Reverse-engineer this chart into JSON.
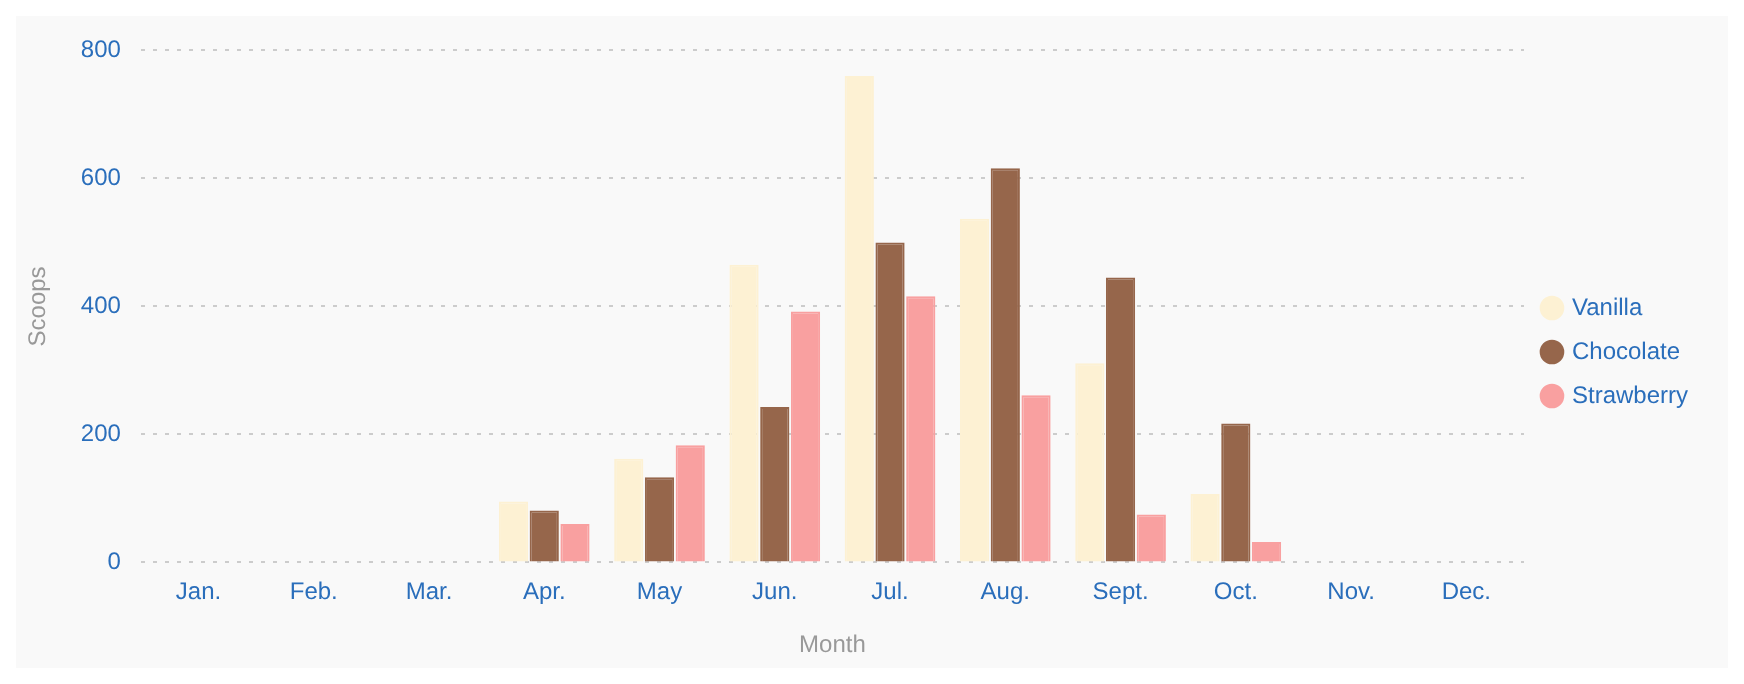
{
  "chart_data": {
    "type": "bar",
    "xlabel": "Month",
    "ylabel": "Scoops",
    "categories": [
      "Jan.",
      "Feb.",
      "Mar.",
      "Apr.",
      "May",
      "Jun.",
      "Jul.",
      "Aug.",
      "Sept.",
      "Oct.",
      "Nov.",
      "Dec."
    ],
    "series": [
      {
        "name": "Vanilla",
        "color": "#fdf1d3",
        "values": [
          0,
          0,
          0,
          95,
          162,
          465,
          760,
          537,
          311,
          107,
          0,
          0
        ]
      },
      {
        "name": "Chocolate",
        "color": "#96664b",
        "values": [
          0,
          0,
          0,
          81,
          133,
          243,
          500,
          616,
          445,
          217,
          0,
          0
        ]
      },
      {
        "name": "Strawberry",
        "color": "#f9a0a0",
        "values": [
          0,
          0,
          0,
          60,
          183,
          392,
          416,
          261,
          75,
          32,
          0,
          0
        ]
      }
    ],
    "ylim": [
      0,
      800
    ],
    "yticks": [
      0,
      200,
      400,
      600,
      800
    ],
    "grid": "y",
    "legend": "right"
  }
}
